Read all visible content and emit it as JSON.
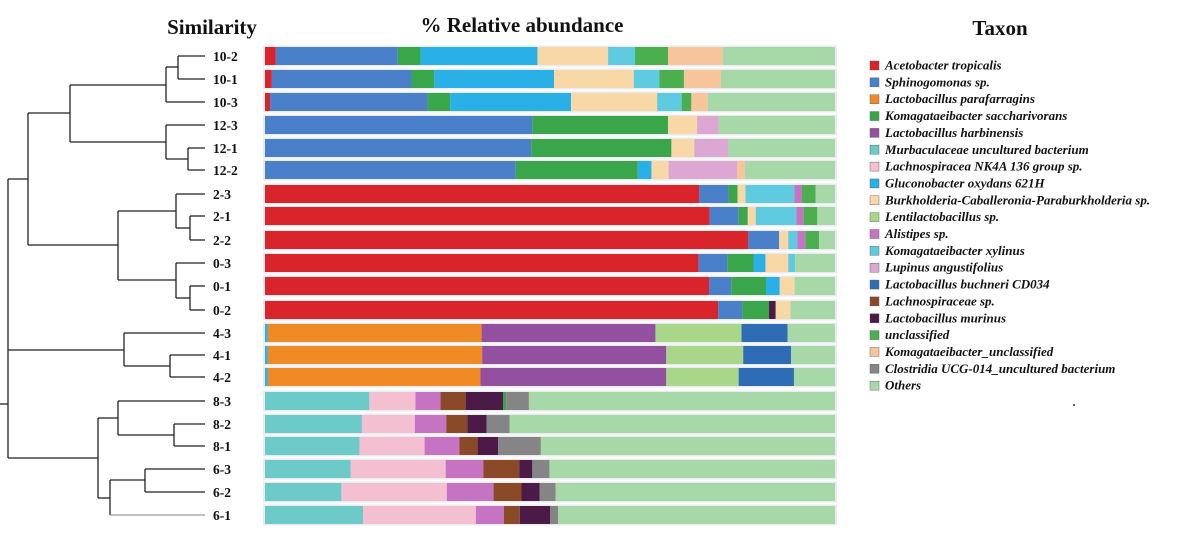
{
  "chart_data": {
    "type": "stacked-bar",
    "orientation": "horizontal",
    "title": "% Relative abundance",
    "headers": {
      "left": "Similarity",
      "center": "% Relative abundance",
      "right": "Taxon"
    },
    "xlim": [
      0,
      100
    ],
    "taxa": [
      {
        "name": "Acetobacter tropicalis",
        "color": "#d9242b"
      },
      {
        "name": "Sphinogomonas sp.",
        "color": "#4a7fc9"
      },
      {
        "name": "Lactobacillus parafarragins",
        "color": "#f08a24"
      },
      {
        "name": "Komagataeibacter saccharivorans",
        "color": "#3aa64b"
      },
      {
        "name": "Lactobacillus harbinensis",
        "color": "#9350a0"
      },
      {
        "name": "Murbaculaceae  uncultured bacterium",
        "color": "#6ccac8"
      },
      {
        "name": "Lachnospiracea NK4A 136 group sp.",
        "color": "#f3bfd1"
      },
      {
        "name": "Gluconobacter oxydans 621H",
        "color": "#29b0e6"
      },
      {
        "name": "Burkholderia-Caballeronia-Paraburkholderia sp.",
        "color": "#f9d8a8"
      },
      {
        "name": "Lentilactobacillus sp.",
        "color": "#a9d78a"
      },
      {
        "name": "Alistipes sp.",
        "color": "#c773c4"
      },
      {
        "name": "Komagataeibacter xylinus",
        "color": "#5fcbe0"
      },
      {
        "name": "Lupinus angustifolius",
        "color": "#dca7d2"
      },
      {
        "name": "Lactobacillus buchneri CD034",
        "color": "#2e6db5"
      },
      {
        "name": "Lachnospiraceae sp.",
        "color": "#8b4a27"
      },
      {
        "name": "Lactobacillus murinus",
        "color": "#4c1a47"
      },
      {
        "name": "unclassified",
        "color": "#4bae4f"
      },
      {
        "name": "Komagataeibacter_unclassified",
        "color": "#f7c59b"
      },
      {
        "name": "Clostridia UCG-014_uncultured bacterium",
        "color": "#858585"
      },
      {
        "name": "Others",
        "color": "#a7d9a8"
      }
    ],
    "samples": [
      {
        "label": "10-2",
        "segments": [
          [
            "Acetobacter tropicalis",
            1.9
          ],
          [
            "Sphinogomonas sp.",
            21.4
          ],
          [
            "Komagataeibacter saccharivorans",
            4.0
          ],
          [
            "Gluconobacter oxydans 621H",
            20.5
          ],
          [
            "Burkholderia-Caballeronia-Paraburkholderia sp.",
            12.4
          ],
          [
            "Komagataeibacter xylinus",
            4.7
          ],
          [
            "unclassified",
            5.8
          ],
          [
            "Komagataeibacter_unclassified",
            9.6
          ],
          [
            "Others",
            19.7
          ]
        ]
      },
      {
        "label": "10-1",
        "segments": [
          [
            "Acetobacter tropicalis",
            1.2
          ],
          [
            "Sphinogomonas sp.",
            24.5
          ],
          [
            "Komagataeibacter saccharivorans",
            4.0
          ],
          [
            "Gluconobacter oxydans 621H",
            21.0
          ],
          [
            "Burkholderia-Caballeronia-Paraburkholderia sp.",
            14.0
          ],
          [
            "Komagataeibacter xylinus",
            4.5
          ],
          [
            "unclassified",
            4.3
          ],
          [
            "Komagataeibacter_unclassified",
            6.5
          ],
          [
            "Others",
            20.0
          ]
        ]
      },
      {
        "label": "10-3",
        "segments": [
          [
            "Acetobacter tropicalis",
            0.9
          ],
          [
            "Sphinogomonas sp.",
            27.6
          ],
          [
            "Komagataeibacter saccharivorans",
            4.0
          ],
          [
            "Gluconobacter oxydans 621H",
            21.2
          ],
          [
            "Burkholderia-Caballeronia-Paraburkholderia sp.",
            15.1
          ],
          [
            "Komagataeibacter xylinus",
            4.3
          ],
          [
            "unclassified",
            1.7
          ],
          [
            "Komagataeibacter_unclassified",
            2.9
          ],
          [
            "Others",
            22.3
          ]
        ]
      },
      {
        "label": "12-3",
        "segments": [
          [
            "Sphinogomonas sp.",
            46.9
          ],
          [
            "Komagataeibacter saccharivorans",
            23.8
          ],
          [
            "Burkholderia-Caballeronia-Paraburkholderia sp.",
            5.1
          ],
          [
            "Lupinus angustifolius",
            3.8
          ],
          [
            "Others",
            20.4
          ]
        ]
      },
      {
        "label": "12-1",
        "segments": [
          [
            "Sphinogomonas sp.",
            46.7
          ],
          [
            "Komagataeibacter saccharivorans",
            24.6
          ],
          [
            "Burkholderia-Caballeronia-Paraburkholderia sp.",
            4.0
          ],
          [
            "Lupinus angustifolius",
            6.0
          ],
          [
            "Others",
            18.7
          ]
        ]
      },
      {
        "label": "12-2",
        "segments": [
          [
            "Sphinogomonas sp.",
            44.0
          ],
          [
            "Komagataeibacter saccharivorans",
            21.4
          ],
          [
            "Gluconobacter oxydans 621H",
            2.4
          ],
          [
            "Burkholderia-Caballeronia-Paraburkholderia sp.",
            3.0
          ],
          [
            "Lupinus angustifolius",
            12.0
          ],
          [
            "Komagataeibacter_unclassified",
            1.4
          ],
          [
            "Others",
            15.8
          ]
        ]
      },
      {
        "label": "2-3",
        "segments": [
          [
            "Acetobacter tropicalis",
            76.2
          ],
          [
            "Sphinogomonas sp.",
            5.1
          ],
          [
            "Komagataeibacter saccharivorans",
            1.6
          ],
          [
            "Burkholderia-Caballeronia-Paraburkholderia sp.",
            1.4
          ],
          [
            "Komagataeibacter xylinus",
            8.6
          ],
          [
            "Alistipes sp.",
            1.3
          ],
          [
            "unclassified",
            2.4
          ],
          [
            "Others",
            3.4
          ]
        ]
      },
      {
        "label": "2-1",
        "segments": [
          [
            "Acetobacter tropicalis",
            78.0
          ],
          [
            "Sphinogomonas sp.",
            5.1
          ],
          [
            "Komagataeibacter saccharivorans",
            1.6
          ],
          [
            "Burkholderia-Caballeronia-Paraburkholderia sp.",
            1.4
          ],
          [
            "Komagataeibacter xylinus",
            7.1
          ],
          [
            "Alistipes sp.",
            1.3
          ],
          [
            "unclassified",
            2.4
          ],
          [
            "Others",
            3.1
          ]
        ]
      },
      {
        "label": "2-2",
        "segments": [
          [
            "Acetobacter tropicalis",
            84.8
          ],
          [
            "Sphinogomonas sp.",
            5.4
          ],
          [
            "Burkholderia-Caballeronia-Paraburkholderia sp.",
            1.6
          ],
          [
            "Komagataeibacter xylinus",
            1.6
          ],
          [
            "Alistipes sp.",
            1.4
          ],
          [
            "unclassified",
            2.4
          ],
          [
            "Others",
            2.8
          ]
        ]
      },
      {
        "label": "0-3",
        "segments": [
          [
            "Acetobacter tropicalis",
            76.1
          ],
          [
            "Sphinogomonas sp.",
            5.0
          ],
          [
            "Komagataeibacter saccharivorans",
            4.6
          ],
          [
            "Gluconobacter oxydans 621H",
            2.1
          ],
          [
            "Burkholderia-Caballeronia-Paraburkholderia sp.",
            4.0
          ],
          [
            "Komagataeibacter xylinus",
            1.2
          ],
          [
            "Others",
            7.0
          ]
        ]
      },
      {
        "label": "0-1",
        "segments": [
          [
            "Acetobacter tropicalis",
            77.9
          ],
          [
            "Sphinogomonas sp.",
            3.9
          ],
          [
            "Komagataeibacter saccharivorans",
            6.1
          ],
          [
            "Gluconobacter oxydans 621H",
            2.4
          ],
          [
            "Burkholderia-Caballeronia-Paraburkholderia sp.",
            2.6
          ],
          [
            "Others",
            7.1
          ]
        ]
      },
      {
        "label": "0-2",
        "segments": [
          [
            "Acetobacter tropicalis",
            79.5
          ],
          [
            "Sphinogomonas sp.",
            4.2
          ],
          [
            "Komagataeibacter saccharivorans",
            4.7
          ],
          [
            "Lactobacillus murinus",
            1.2
          ],
          [
            "Burkholderia-Caballeronia-Paraburkholderia sp.",
            2.6
          ],
          [
            "Others",
            7.8
          ]
        ]
      },
      {
        "label": "4-3",
        "segments": [
          [
            "Gluconobacter oxydans 621H",
            0.5
          ],
          [
            "Lactobacillus parafarragins",
            37.5
          ],
          [
            "Lactobacillus harbinensis",
            30.5
          ],
          [
            "Lentilactobacillus sp.",
            15.1
          ],
          [
            "Lactobacillus buchneri CD034",
            8.1
          ],
          [
            "Others",
            8.3
          ]
        ]
      },
      {
        "label": "4-1",
        "segments": [
          [
            "Gluconobacter oxydans 621H",
            0.5
          ],
          [
            "Lactobacillus parafarragins",
            37.6
          ],
          [
            "Lactobacillus harbinensis",
            32.3
          ],
          [
            "Lentilactobacillus sp.",
            13.5
          ],
          [
            "Lactobacillus buchneri CD034",
            8.4
          ],
          [
            "Others",
            7.7
          ]
        ]
      },
      {
        "label": "4-2",
        "segments": [
          [
            "Gluconobacter oxydans 621H",
            0.5
          ],
          [
            "Lactobacillus parafarragins",
            37.3
          ],
          [
            "Lactobacillus harbinensis",
            32.6
          ],
          [
            "Lentilactobacillus sp.",
            12.7
          ],
          [
            "Lactobacillus buchneri CD034",
            9.7
          ],
          [
            "Others",
            7.2
          ]
        ]
      },
      {
        "label": "8-3",
        "segments": [
          [
            "Murbaculaceae  uncultured bacterium",
            18.3
          ],
          [
            "Lachnospiracea NK4A 136 group sp.",
            8.1
          ],
          [
            "Alistipes sp.",
            4.4
          ],
          [
            "Lachnospiraceae sp.",
            4.4
          ],
          [
            "Lactobacillus murinus",
            6.6
          ],
          [
            "Komagataeibacter saccharivorans",
            0.5
          ],
          [
            "Clostridia UCG-014_uncultured bacterium",
            4.0
          ],
          [
            "Others",
            53.7
          ]
        ]
      },
      {
        "label": "8-2",
        "segments": [
          [
            "Murbaculaceae  uncultured bacterium",
            17.0
          ],
          [
            "Lachnospiracea NK4A 136 group sp.",
            9.3
          ],
          [
            "Alistipes sp.",
            5.5
          ],
          [
            "Lachnospiraceae sp.",
            3.7
          ],
          [
            "Lactobacillus murinus",
            3.4
          ],
          [
            "Clostridia UCG-014_uncultured bacterium",
            4.0
          ],
          [
            "Others",
            57.1
          ]
        ]
      },
      {
        "label": "8-1",
        "segments": [
          [
            "Murbaculaceae  uncultured bacterium",
            16.6
          ],
          [
            "Lachnospiracea NK4A 136 group sp.",
            11.4
          ],
          [
            "Alistipes sp.",
            6.1
          ],
          [
            "Lachnospiraceae sp.",
            3.2
          ],
          [
            "Lactobacillus murinus",
            3.6
          ],
          [
            "Clostridia UCG-014_uncultured bacterium",
            7.5
          ],
          [
            "Others",
            51.6
          ]
        ]
      },
      {
        "label": "6-3",
        "segments": [
          [
            "Murbaculaceae  uncultured bacterium",
            15.0
          ],
          [
            "Lachnospiracea NK4A 136 group sp.",
            16.7
          ],
          [
            "Alistipes sp.",
            6.6
          ],
          [
            "Lachnospiraceae sp.",
            6.3
          ],
          [
            "Lactobacillus murinus",
            2.3
          ],
          [
            "Clostridia UCG-014_uncultured bacterium",
            3.0
          ],
          [
            "Others",
            50.1
          ]
        ]
      },
      {
        "label": "6-2",
        "segments": [
          [
            "Murbaculaceae  uncultured bacterium",
            13.4
          ],
          [
            "Lachnospiracea NK4A 136 group sp.",
            18.5
          ],
          [
            "Alistipes sp.",
            8.2
          ],
          [
            "Lachnospiraceae sp.",
            4.9
          ],
          [
            "Lactobacillus murinus",
            3.2
          ],
          [
            "Clostridia UCG-014_uncultured bacterium",
            2.8
          ],
          [
            "Others",
            49.0
          ]
        ]
      },
      {
        "label": "6-1",
        "segments": [
          [
            "Murbaculaceae  uncultured bacterium",
            17.2
          ],
          [
            "Lachnospiracea NK4A 136 group sp.",
            19.8
          ],
          [
            "Alistipes sp.",
            4.9
          ],
          [
            "Lachnospiraceae sp.",
            2.8
          ],
          [
            "Lactobacillus murinus",
            5.3
          ],
          [
            "Clostridia UCG-014_uncultured bacterium",
            1.4
          ],
          [
            "Others",
            48.6
          ]
        ]
      }
    ]
  }
}
